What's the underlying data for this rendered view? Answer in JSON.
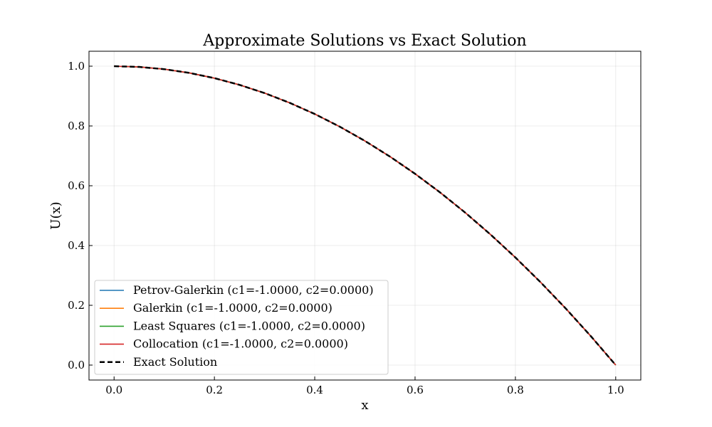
{
  "chart_data": {
    "type": "line",
    "title": "Approximate Solutions vs Exact Solution",
    "xlabel": "x",
    "ylabel": "U(x)",
    "xlim": [
      -0.05,
      1.05
    ],
    "ylim": [
      -0.05,
      1.05
    ],
    "xticks": [
      0.0,
      0.2,
      0.4,
      0.6,
      0.8,
      1.0
    ],
    "xtick_labels": [
      "0.0",
      "0.2",
      "0.4",
      "0.6",
      "0.8",
      "1.0"
    ],
    "yticks": [
      0.0,
      0.2,
      0.4,
      0.6,
      0.8,
      1.0
    ],
    "ytick_labels": [
      "0.0",
      "0.2",
      "0.4",
      "0.6",
      "0.8",
      "1.0"
    ],
    "grid": true,
    "legend_position": "lower-left",
    "x": [
      0.0,
      0.05,
      0.1,
      0.15,
      0.2,
      0.25,
      0.3,
      0.35,
      0.4,
      0.45,
      0.5,
      0.55,
      0.6,
      0.65,
      0.7,
      0.75,
      0.8,
      0.85,
      0.9,
      0.95,
      1.0
    ],
    "series": [
      {
        "name": "Petrov-Galerkin (c1=-1.0000, c2=0.0000)",
        "color": "#1f77b4",
        "style": "solid",
        "values": [
          1.0,
          0.9975,
          0.99,
          0.9775,
          0.96,
          0.9375,
          0.91,
          0.8775,
          0.84,
          0.7975,
          0.75,
          0.6975,
          0.64,
          0.5775,
          0.51,
          0.4375,
          0.36,
          0.2775,
          0.19,
          0.0975,
          0.0
        ]
      },
      {
        "name": "Galerkin (c1=-1.0000, c2=0.0000)",
        "color": "#ff7f0e",
        "style": "solid",
        "values": [
          1.0,
          0.9975,
          0.99,
          0.9775,
          0.96,
          0.9375,
          0.91,
          0.8775,
          0.84,
          0.7975,
          0.75,
          0.6975,
          0.64,
          0.5775,
          0.51,
          0.4375,
          0.36,
          0.2775,
          0.19,
          0.0975,
          0.0
        ]
      },
      {
        "name": "Least Squares (c1=-1.0000, c2=0.0000)",
        "color": "#2ca02c",
        "style": "solid",
        "values": [
          1.0,
          0.9975,
          0.99,
          0.9775,
          0.96,
          0.9375,
          0.91,
          0.8775,
          0.84,
          0.7975,
          0.75,
          0.6975,
          0.64,
          0.5775,
          0.51,
          0.4375,
          0.36,
          0.2775,
          0.19,
          0.0975,
          0.0
        ]
      },
      {
        "name": "Collocation (c1=-1.0000, c2=0.0000)",
        "color": "#d62728",
        "style": "solid",
        "values": [
          1.0,
          0.9975,
          0.99,
          0.9775,
          0.96,
          0.9375,
          0.91,
          0.8775,
          0.84,
          0.7975,
          0.75,
          0.6975,
          0.64,
          0.5775,
          0.51,
          0.4375,
          0.36,
          0.2775,
          0.19,
          0.0975,
          0.0
        ]
      },
      {
        "name": "Exact Solution",
        "color": "#000000",
        "style": "dashed",
        "values": [
          1.0,
          0.9975,
          0.99,
          0.9775,
          0.96,
          0.9375,
          0.91,
          0.8775,
          0.84,
          0.7975,
          0.75,
          0.6975,
          0.64,
          0.5775,
          0.51,
          0.4375,
          0.36,
          0.2775,
          0.19,
          0.0975,
          0.0
        ]
      }
    ]
  }
}
